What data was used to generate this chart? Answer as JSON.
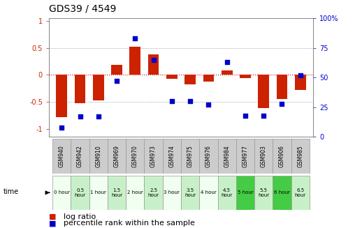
{
  "title": "GDS39 / 4549",
  "samples": [
    "GSM940",
    "GSM942",
    "GSM910",
    "GSM969",
    "GSM970",
    "GSM973",
    "GSM974",
    "GSM975",
    "GSM976",
    "GSM984",
    "GSM977",
    "GSM903",
    "GSM906",
    "GSM985"
  ],
  "time_labels": [
    "0 hour",
    "0.5\nhour",
    "1 hour",
    "1.5\nhour",
    "2 hour",
    "2.5\nhour",
    "3 hour",
    "3.5\nhour",
    "4 hour",
    "4.5\nhour",
    "5 hour",
    "5.5\nhour",
    "6 hour",
    "6.5\nhour"
  ],
  "log_ratio": [
    -0.78,
    -0.52,
    -0.48,
    0.18,
    0.52,
    0.38,
    -0.07,
    -0.18,
    -0.13,
    0.08,
    -0.06,
    -0.62,
    -0.45,
    -0.28
  ],
  "percentile": [
    8,
    17,
    17,
    47,
    83,
    65,
    30,
    30,
    27,
    63,
    18,
    18,
    28,
    52
  ],
  "time_colors": [
    "#f0fff0",
    "#c8f0c8",
    "#f0fff0",
    "#c8f0c8",
    "#f0fff0",
    "#c8f0c8",
    "#f0fff0",
    "#c8f0c8",
    "#f0fff0",
    "#c8f0c8",
    "#44cc44",
    "#c8f0c8",
    "#44cc44",
    "#c8f0c8"
  ],
  "bar_color": "#cc2200",
  "dot_color": "#0000cc",
  "yticks_left": [
    -1,
    -0.5,
    0,
    0.5,
    1
  ],
  "yticks_right": [
    0,
    25,
    50,
    75,
    100
  ],
  "ylim_left": [
    -1.15,
    1.05
  ],
  "ylim_right": [
    0,
    100
  ],
  "hline_color": "#cc0000",
  "grid_color": "#888888",
  "background_color": "#ffffff",
  "title_fontsize": 10,
  "tick_fontsize": 7,
  "legend_fontsize": 8,
  "sample_area_color": "#cccccc",
  "sample_border_color": "#999999"
}
